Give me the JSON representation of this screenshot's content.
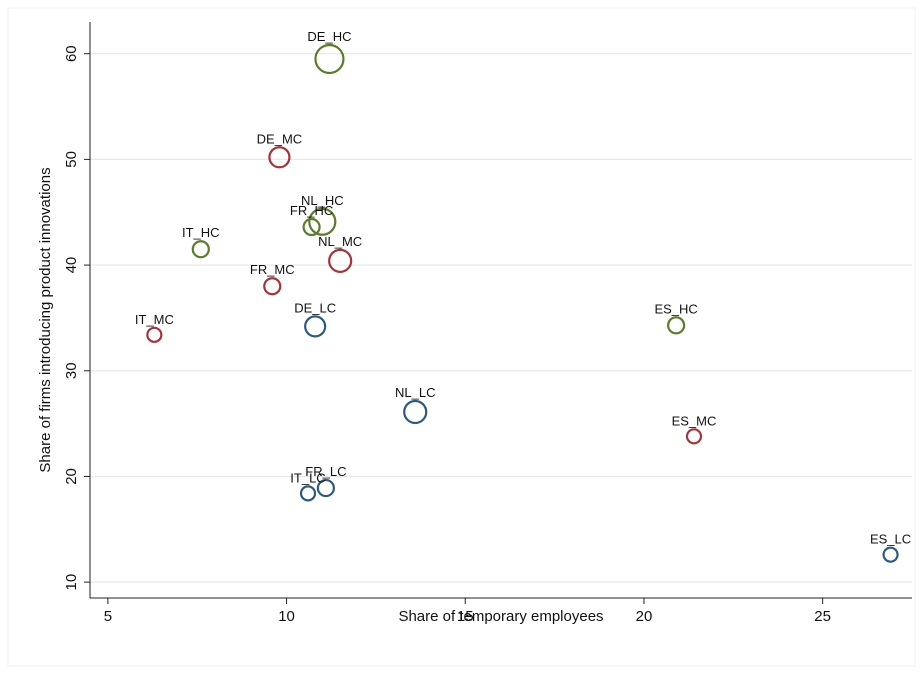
{
  "chart_data": {
    "type": "scatter",
    "title": "",
    "xlabel": "Share of temporary employees",
    "ylabel": "Share of firms introducing product innovations",
    "xlim": [
      4.5,
      27.5
    ],
    "ylim": [
      8.5,
      63
    ],
    "xticks": [
      5,
      10,
      15,
      20,
      25
    ],
    "yticks": [
      10,
      20,
      30,
      40,
      50,
      60
    ],
    "grid": "horizontal",
    "colors": {
      "HC": "#5a7d2a",
      "MC": "#a83237",
      "LC": "#2c5a80"
    },
    "points": [
      {
        "label": "DE_HC",
        "x": 11.2,
        "y": 59.5,
        "group": "HC",
        "size": 14
      },
      {
        "label": "DE_MC",
        "x": 9.8,
        "y": 50.2,
        "group": "MC",
        "size": 10
      },
      {
        "label": "NL_HC",
        "x": 11.0,
        "y": 44.1,
        "group": "HC",
        "size": 13
      },
      {
        "label": "FR_HC",
        "x": 10.7,
        "y": 43.6,
        "group": "HC",
        "size": 8
      },
      {
        "label": "IT_HC",
        "x": 7.6,
        "y": 41.5,
        "group": "HC",
        "size": 8
      },
      {
        "label": "NL_MC",
        "x": 11.5,
        "y": 40.4,
        "group": "MC",
        "size": 11
      },
      {
        "label": "FR_MC",
        "x": 9.6,
        "y": 38.0,
        "group": "MC",
        "size": 8
      },
      {
        "label": "DE_LC",
        "x": 10.8,
        "y": 34.2,
        "group": "LC",
        "size": 10
      },
      {
        "label": "IT_MC",
        "x": 6.3,
        "y": 33.4,
        "group": "MC",
        "size": 7
      },
      {
        "label": "ES_HC",
        "x": 20.9,
        "y": 34.3,
        "group": "HC",
        "size": 8
      },
      {
        "label": "NL_LC",
        "x": 13.6,
        "y": 26.1,
        "group": "LC",
        "size": 11
      },
      {
        "label": "ES_MC",
        "x": 21.4,
        "y": 23.8,
        "group": "MC",
        "size": 7
      },
      {
        "label": "FR_LC",
        "x": 11.1,
        "y": 18.9,
        "group": "LC",
        "size": 8
      },
      {
        "label": "IT_LC",
        "x": 10.6,
        "y": 18.4,
        "group": "LC",
        "size": 7
      },
      {
        "label": "ES_LC",
        "x": 26.9,
        "y": 12.6,
        "group": "LC",
        "size": 7
      }
    ]
  }
}
